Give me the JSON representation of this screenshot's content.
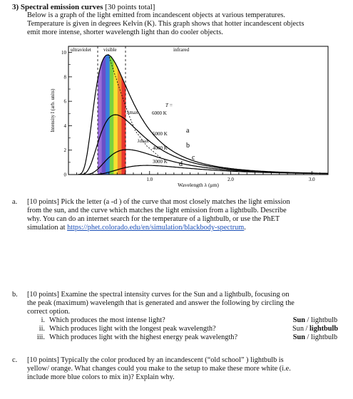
{
  "header": {
    "title_prefix": "3) Spectral emission curves",
    "title_points": "[30 points total]",
    "lines": [
      "Below is a graph of the light emitted from incandescent objects at various temperatures.",
      "Temperature is given in degrees Kelvin (K).  This graph shows that hotter incandescent objects",
      "emit more intense, shorter wavelength light than do cooler objects."
    ]
  },
  "graph": {
    "region_labels": {
      "uv": "ultraviolet",
      "visible": "visible",
      "ir": "infrared"
    },
    "ylabel": "Intensity I (arb. units)",
    "xlabel": "Wavelength λ  (μm)",
    "xticks": [
      "1.0",
      "2.0",
      "3.0"
    ],
    "yticks": [
      "0",
      "2",
      "4",
      "6",
      "8",
      "10"
    ],
    "curves": [
      {
        "temp": "6000 K",
        "letter": "a"
      },
      {
        "temp": "5000 K",
        "letter": "b"
      },
      {
        "temp": "4000 K",
        "letter": "c"
      },
      {
        "temp": "3000 K",
        "letter": "d"
      }
    ],
    "t_label": "T =",
    "lambda_max": "λmax",
    "spectrum_colors": [
      "#e8352e",
      "#f28b2e",
      "#f5e130",
      "#7bd23f",
      "#3a7fe0",
      "#6a4fc8",
      "#9a6fd8"
    ]
  },
  "questions": {
    "a": {
      "letter": "a.",
      "lines": [
        "[10 points] Pick the letter (a -d ) of the curve that most closely matches the light emission",
        "from the sun, and the curve which matches the light emission from a lightbulb.  Describe",
        "why.  You can do an internet search for the temperature of a lightbulb, or use the PhET"
      ],
      "last_prefix": "simulation at ",
      "link": "https://phet.colorado.edu/en/simulation/blackbody-spectrum",
      "last_suffix": "."
    },
    "b": {
      "letter": "b.",
      "lines": [
        "[10 points] Examine the spectral intensity curves for the Sun and a lightbulb, focusing on",
        "the peak (maximum) wavelength that is generated and answer the following by circling the",
        "correct option."
      ],
      "items": [
        {
          "num": "i.",
          "text": "Which produces the most intense light?",
          "a1": "Sun",
          "sep": " / ",
          "a2": "lightbulb"
        },
        {
          "num": "ii.",
          "text": "Which produces light with the longest peak wavelength?",
          "a1": "Sun",
          "sep": " / ",
          "a2": "lightbulb"
        },
        {
          "num": "iii.",
          "text": "Which produces light with the highest energy peak wavelength?",
          "a1": "Sun",
          "sep": " / ",
          "a2": "lightbulb"
        }
      ]
    },
    "c": {
      "letter": "c.",
      "lines": [
        "[10 points] Typically the color produced by an incandescent (“old school” ) lightbulb is",
        "yellow/ orange.  What changes could you make to the setup to make these more white (i.e.",
        "include more blue colors to mix in)?  Explain why."
      ]
    }
  }
}
